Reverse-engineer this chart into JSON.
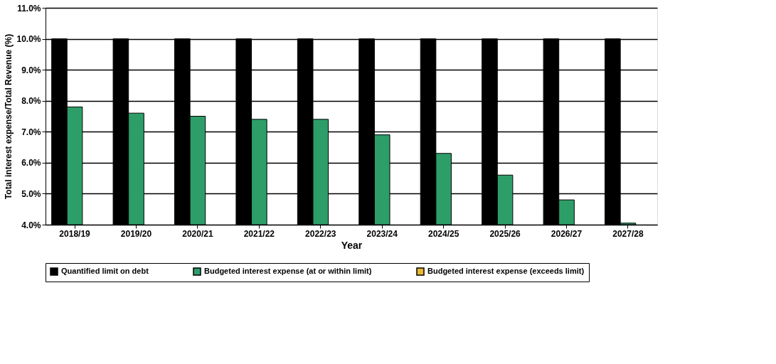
{
  "chart_data": {
    "type": "bar",
    "xlabel": "Year",
    "ylabel": "Total interest expense/Total Revenue (%)",
    "categories": [
      "2018/19",
      "2019/20",
      "2020/21",
      "2021/22",
      "2022/23",
      "2023/24",
      "2024/25",
      "2025/26",
      "2026/27",
      "2027/28"
    ],
    "series": [
      {
        "name": "Quantified limit on debt",
        "color": "#000000",
        "values": [
          10,
          10,
          10,
          10,
          10,
          10,
          10,
          10,
          10,
          10
        ]
      },
      {
        "name": "Budgeted interest expense (at or within limit)",
        "color": "#2e9e68",
        "values": [
          7.8,
          7.6,
          7.5,
          7.4,
          7.4,
          6.9,
          6.3,
          5.6,
          4.8,
          4.05
        ]
      },
      {
        "name": "Budgeted interest expense (exceeds limit)",
        "color": "#e8b830",
        "values": [
          null,
          null,
          null,
          null,
          null,
          null,
          null,
          null,
          null,
          null
        ]
      }
    ],
    "ylim": [
      4,
      11
    ],
    "yticks": [
      {
        "value": 4,
        "label": "4.0%"
      },
      {
        "value": 5,
        "label": "5.0%"
      },
      {
        "value": 6,
        "label": "6.0%"
      },
      {
        "value": 7,
        "label": "7.0%"
      },
      {
        "value": 8,
        "label": "8.0%"
      },
      {
        "value": 9,
        "label": "9.0%"
      },
      {
        "value": 10,
        "label": "10.0%"
      },
      {
        "value": 11,
        "label": "11.0%"
      }
    ],
    "grid": "y",
    "legend": "bottom"
  }
}
